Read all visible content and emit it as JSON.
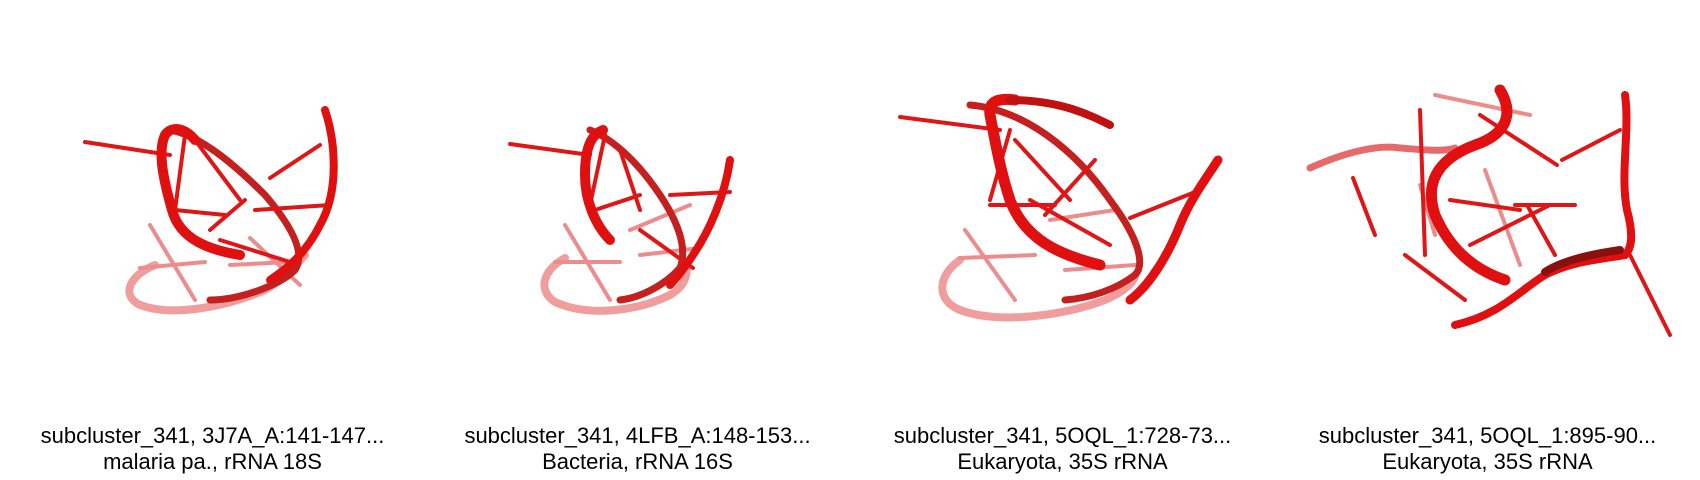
{
  "panels": [
    {
      "line1": "subcluster_341, 3J7A_A:141-147...",
      "line2": "malaria pa., rRNA 18S",
      "image": "rna-hairpin-structure"
    },
    {
      "line1": "subcluster_341, 4LFB_A:148-153...",
      "line2": "Bacteria, rRNA 16S",
      "image": "rna-hairpin-structure"
    },
    {
      "line1": "subcluster_341, 5OQL_1:728-73...",
      "line2": "Eukaryota, 35S rRNA",
      "image": "rna-hairpin-structure"
    },
    {
      "line1": "subcluster_341, 5OQL_1:895-90...",
      "line2": "Eukaryota, 35S rRNA",
      "image": "rna-hairpin-structure"
    }
  ],
  "colors": {
    "backbone": "#e01010",
    "backbone_faded": "#e66a6a",
    "background": "#ffffff"
  }
}
